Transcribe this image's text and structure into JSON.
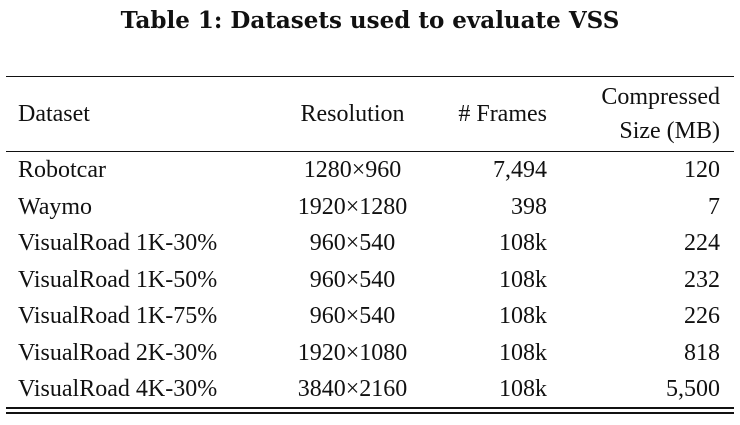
{
  "caption": "Table 1: Datasets used to evaluate VSS",
  "table": {
    "headers": {
      "dataset": "Dataset",
      "resolution": "Resolution",
      "frames": "# Frames",
      "size_line1": "Compressed",
      "size_line2": "Size (MB)"
    },
    "rows": [
      {
        "dataset": "Robotcar",
        "resolution": "1280×960",
        "frames": "7,494",
        "size": "120"
      },
      {
        "dataset": "Waymo",
        "resolution": "1920×1280",
        "frames": "398",
        "size": "7"
      },
      {
        "dataset": "VisualRoad 1K-30%",
        "resolution": "960×540",
        "frames": "108k",
        "size": "224"
      },
      {
        "dataset": "VisualRoad 1K-50%",
        "resolution": "960×540",
        "frames": "108k",
        "size": "232"
      },
      {
        "dataset": "VisualRoad 1K-75%",
        "resolution": "960×540",
        "frames": "108k",
        "size": "226"
      },
      {
        "dataset": "VisualRoad 2K-30%",
        "resolution": "1920×1080",
        "frames": "108k",
        "size": "818"
      },
      {
        "dataset": "VisualRoad 4K-30%",
        "resolution": "3840×2160",
        "frames": "108k",
        "size": "5,500"
      }
    ]
  }
}
